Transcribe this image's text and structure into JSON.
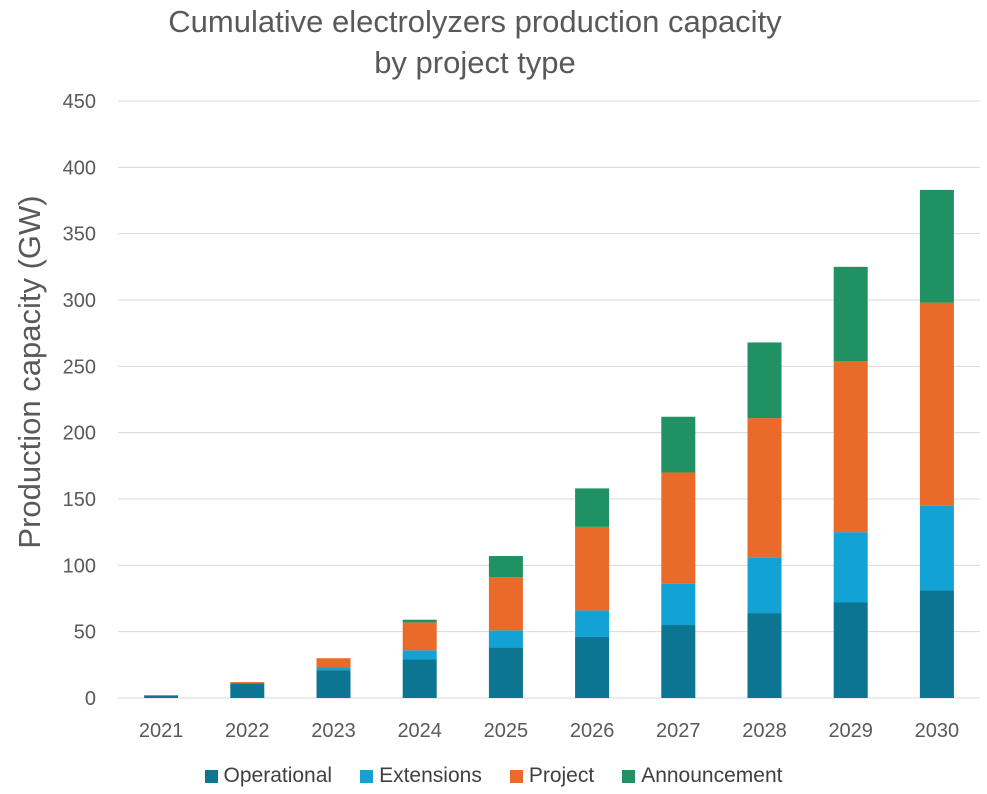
{
  "chart_data": {
    "type": "bar",
    "stacked": true,
    "title_line1": "Cumulative electrolyzers production capacity",
    "title_line2": "by project type",
    "xlabel": "",
    "ylabel": "Production capacity (GW)",
    "ylim": [
      0,
      450
    ],
    "yticks": [
      0,
      50,
      100,
      150,
      200,
      250,
      300,
      350,
      400,
      450
    ],
    "grid": true,
    "legend_position": "bottom",
    "categories": [
      "2021",
      "2022",
      "2023",
      "2024",
      "2025",
      "2026",
      "2027",
      "2028",
      "2029",
      "2030"
    ],
    "series": [
      {
        "name": "Operational",
        "color": "#0b7592",
        "values": [
          2,
          11,
          21,
          29,
          38,
          46,
          55,
          64,
          72,
          81
        ]
      },
      {
        "name": "Extensions",
        "color": "#13a2d4",
        "values": [
          0,
          0,
          2,
          7,
          13,
          20,
          31,
          42,
          53,
          64
        ]
      },
      {
        "name": "Project",
        "color": "#ea6a2a",
        "values": [
          0,
          1,
          7,
          21,
          40,
          63,
          84,
          105,
          129,
          153
        ]
      },
      {
        "name": "Announcement",
        "color": "#1f9162",
        "values": [
          0,
          0,
          0,
          2,
          16,
          29,
          42,
          57,
          71,
          85
        ]
      }
    ]
  }
}
